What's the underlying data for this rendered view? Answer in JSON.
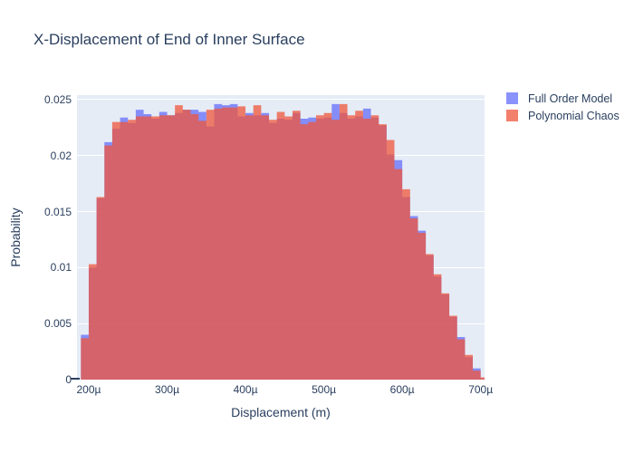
{
  "title": "X-Displacement of End of Inner Surface",
  "legend": {
    "items": [
      {
        "label": "Full Order Model",
        "color": "#636EFA"
      },
      {
        "label": "Polynomial Chaos",
        "color": "#EF553B"
      }
    ]
  },
  "chart_data": {
    "type": "histogram-overlay",
    "title": "X-Displacement of End of Inner Surface",
    "xlabel": "Displacement (m)",
    "ylabel": "Probability",
    "barmode": "overlay",
    "bar_opacity": 0.75,
    "plot_bgcolor": "#E5ECF6",
    "gridcolor": "#ffffff",
    "grid": "horizontal-only",
    "legend_position": "top-right-outside",
    "bin_start_micro": 190,
    "bin_width_micro": 10,
    "xlim_micro": [
      185,
      705
    ],
    "ylim": [
      0,
      0.0254
    ],
    "yticks": [
      {
        "value": 0.0,
        "label": "0"
      },
      {
        "value": 0.005,
        "label": "0.005"
      },
      {
        "value": 0.01,
        "label": "0.01"
      },
      {
        "value": 0.015,
        "label": "0.015"
      },
      {
        "value": 0.02,
        "label": "0.02"
      },
      {
        "value": 0.025,
        "label": "0.025"
      }
    ],
    "xticks": [
      {
        "value": 200,
        "label": "200µ"
      },
      {
        "value": 300,
        "label": "300µ"
      },
      {
        "value": 400,
        "label": "400µ"
      },
      {
        "value": 500,
        "label": "500µ"
      },
      {
        "value": 600,
        "label": "600µ"
      },
      {
        "value": 700,
        "label": "700µ"
      }
    ],
    "series": [
      {
        "name": "Full Order Model",
        "color": "#636EFA",
        "values": [
          0.004,
          0.01,
          0.0162,
          0.0212,
          0.0224,
          0.0234,
          0.0229,
          0.0241,
          0.0237,
          0.0233,
          0.0239,
          0.0236,
          0.0238,
          0.0241,
          0.0241,
          0.0239,
          0.0226,
          0.0246,
          0.0245,
          0.0246,
          0.0235,
          0.0238,
          0.0236,
          0.0238,
          0.0229,
          0.0233,
          0.0232,
          0.0238,
          0.0233,
          0.0234,
          0.0233,
          0.0234,
          0.0246,
          0.0238,
          0.0233,
          0.0235,
          0.0242,
          0.0234,
          0.0227,
          0.0201,
          0.0196,
          0.0163,
          0.0146,
          0.0133,
          0.0111,
          0.0092,
          0.0076,
          0.0056,
          0.0038,
          0.002,
          0.001,
          0.0001
        ]
      },
      {
        "name": "Polynomial Chaos",
        "color": "#EF553B",
        "values": [
          0.0037,
          0.0103,
          0.0163,
          0.0209,
          0.023,
          0.023,
          0.0232,
          0.0235,
          0.0235,
          0.0235,
          0.0236,
          0.0236,
          0.0245,
          0.0241,
          0.0237,
          0.0231,
          0.0241,
          0.0242,
          0.0243,
          0.0243,
          0.0244,
          0.0236,
          0.0245,
          0.0236,
          0.0232,
          0.0239,
          0.0235,
          0.024,
          0.0228,
          0.023,
          0.0236,
          0.0238,
          0.0232,
          0.0246,
          0.0236,
          0.024,
          0.0233,
          0.0236,
          0.0228,
          0.0214,
          0.0188,
          0.017,
          0.0144,
          0.0131,
          0.0112,
          0.0094,
          0.0077,
          0.0057,
          0.0036,
          0.0022,
          0.0008,
          0.0002
        ]
      }
    ]
  }
}
